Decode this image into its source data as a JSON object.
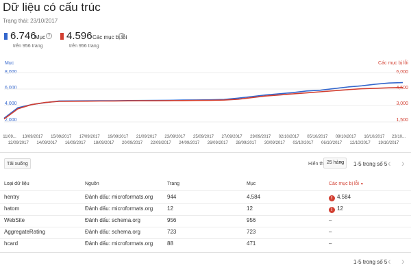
{
  "header": {
    "title": "Dữ liệu có cấu trúc",
    "status": "Trạng thái: 23/10/2017"
  },
  "metrics": [
    {
      "value": "6.746",
      "label": "Mục",
      "sub": "trên 956 trang",
      "color": "#3366cc"
    },
    {
      "value": "4.596",
      "label": "Các mục bị lỗi",
      "sub": "trên 956 trang",
      "color": "#d23f31"
    }
  ],
  "chart_data": {
    "type": "line",
    "left_axis_title": "Mục",
    "right_axis_title": "Các mục bị lỗi",
    "left_ticks": [
      "8,000",
      "6,000",
      "4,000",
      "2,000"
    ],
    "right_ticks": [
      "6,000",
      "4,500",
      "3,000",
      "1,500"
    ],
    "left_ylim": [
      0,
      8000
    ],
    "right_ylim": [
      0,
      6000
    ],
    "x_labels_top": [
      "11/09...",
      "13/09/2017",
      "15/09/2017",
      "17/09/2017",
      "19/09/2017",
      "21/09/2017",
      "23/09/2017",
      "25/09/2017",
      "27/09/2017",
      "29/09/2017",
      "02/10/2017",
      "05/10/2017",
      "09/10/2017",
      "16/10/2017",
      "23/10..."
    ],
    "x_labels_bottom": [
      "12/09/2017",
      "14/09/2017",
      "16/09/2017",
      "18/09/2017",
      "20/09/2017",
      "22/09/2017",
      "24/09/2017",
      "26/09/2017",
      "28/09/2017",
      "30/09/2017",
      "03/10/2017",
      "06/10/2017",
      "12/10/2017",
      "19/10/2017"
    ],
    "grid": true,
    "series": [
      {
        "name": "Mục",
        "color": "#3366cc",
        "axis": "left",
        "values": [
          2300,
          3600,
          4000,
          4250,
          4450,
          4460,
          4470,
          4480,
          4490,
          4500,
          4510,
          4520,
          4540,
          4560,
          4580,
          4600,
          4640,
          4800,
          5000,
          5200,
          5350,
          5500,
          5700,
          5800,
          6000,
          6200,
          6350,
          6550,
          6700,
          6746
        ]
      },
      {
        "name": "Các mục bị lỗi",
        "color": "#d23f31",
        "axis": "right",
        "values": [
          1650,
          2600,
          3000,
          3200,
          3300,
          3310,
          3320,
          3330,
          3340,
          3350,
          3355,
          3360,
          3370,
          3380,
          3390,
          3400,
          3420,
          3500,
          3650,
          3800,
          3900,
          4000,
          4100,
          4200,
          4300,
          4400,
          4480,
          4530,
          4570,
          4596
        ]
      }
    ]
  },
  "toolbar": {
    "download": "Tải xuống",
    "rows_label": "Hiển thị",
    "rows_value": "25 hàng",
    "range": "1-5 trong số 5",
    "prev_icon": "chevron-left-icon",
    "next_icon": "chevron-right-icon"
  },
  "table": {
    "headers": [
      "Loại dữ liệu",
      "Nguồn",
      "Trang",
      "Mục",
      "Các mục bị lỗi"
    ],
    "rows": [
      [
        "hentry",
        "Đánh dấu: microformats.org",
        "944",
        "4.584",
        "4.584"
      ],
      [
        "hatom",
        "Đánh dấu: microformats.org",
        "12",
        "12",
        "12"
      ],
      [
        "WebSite",
        "Đánh dấu: schema.org",
        "956",
        "956",
        "–"
      ],
      [
        "AggregateRating",
        "Đánh dấu: schema.org",
        "723",
        "723",
        "–"
      ],
      [
        "hcard",
        "Đánh dấu: microformats.org",
        "88",
        "471",
        "–"
      ]
    ],
    "error_rows": [
      0,
      1
    ]
  },
  "footer": {
    "range": "1-5 trong số 5"
  }
}
